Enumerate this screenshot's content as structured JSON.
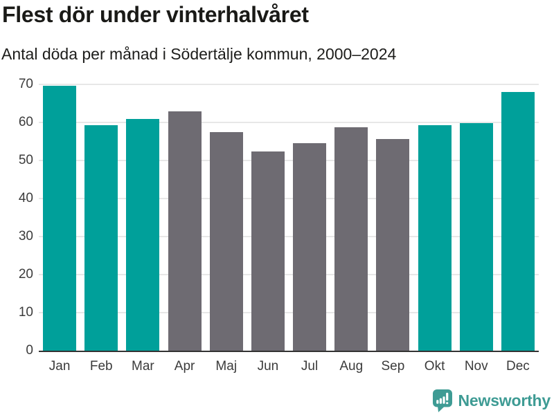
{
  "header": {
    "title": "Flest dör under vinterhalvåret",
    "subtitle": "Antal döda per månad i Södertälje kommun, 2000–2024"
  },
  "colors": {
    "winter_bar": "#00a09a",
    "summer_bar": "#6e6b72",
    "gridline": "#e7e7e7",
    "axis_line": "#333333",
    "tick_label": "#3b3b3b",
    "logo_teal": "#3e9b94"
  },
  "chart_data": {
    "type": "bar",
    "title": "Flest dör under vinterhalvåret",
    "subtitle": "Antal döda per månad i Södertälje kommun, 2000–2024",
    "categories": [
      "Jan",
      "Feb",
      "Mar",
      "Apr",
      "Maj",
      "Jun",
      "Jul",
      "Aug",
      "Sep",
      "Okt",
      "Nov",
      "Dec"
    ],
    "values": [
      69.7,
      59.2,
      61.0,
      63.0,
      57.4,
      52.3,
      54.6,
      58.8,
      55.6,
      59.3,
      59.8,
      68.0
    ],
    "bar_color_keys": [
      "winter_bar",
      "winter_bar",
      "winter_bar",
      "summer_bar",
      "summer_bar",
      "summer_bar",
      "summer_bar",
      "summer_bar",
      "summer_bar",
      "winter_bar",
      "winter_bar",
      "winter_bar"
    ],
    "xlabel": "",
    "ylabel": "",
    "ylim": [
      0,
      70
    ],
    "yticks": [
      0,
      10,
      20,
      30,
      40,
      50,
      60,
      70
    ],
    "grid": true,
    "legend": "none"
  },
  "footer": {
    "brand": "Newsworthy"
  }
}
